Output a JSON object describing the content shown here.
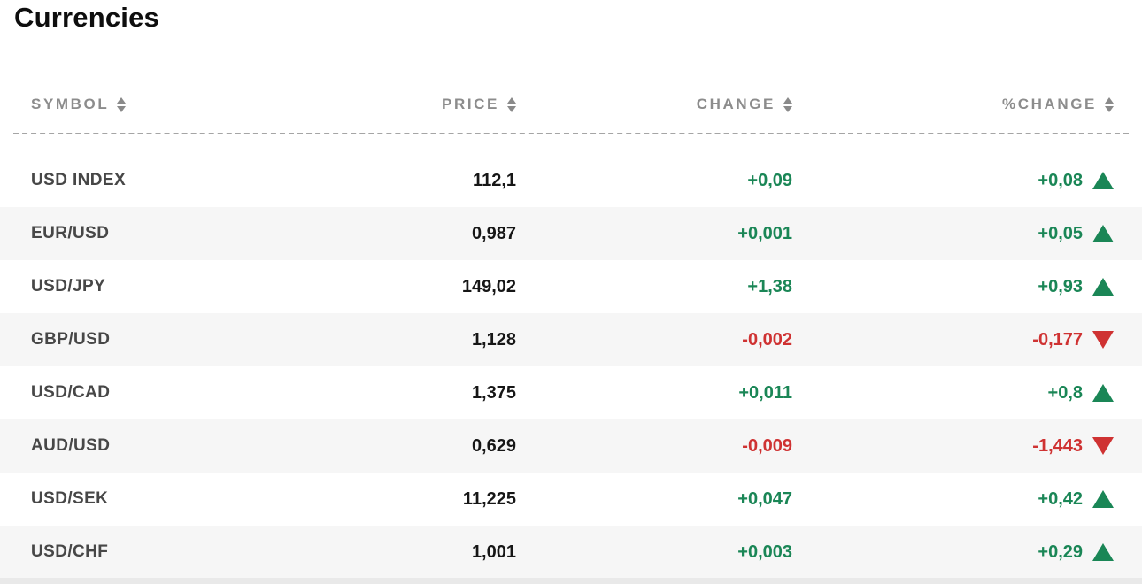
{
  "page": {
    "title": "Currencies"
  },
  "table": {
    "columns": [
      {
        "key": "symbol",
        "label": "SYMBOL"
      },
      {
        "key": "price",
        "label": "PRICE"
      },
      {
        "key": "change",
        "label": "CHANGE"
      },
      {
        "key": "pct_change",
        "label": "%CHANGE"
      }
    ],
    "rows": [
      {
        "symbol": "USD INDEX",
        "price": "112,1",
        "change": "+0,09",
        "pct_change": "+0,08",
        "direction": "up"
      },
      {
        "symbol": "EUR/USD",
        "price": "0,987",
        "change": "+0,001",
        "pct_change": "+0,05",
        "direction": "up"
      },
      {
        "symbol": "USD/JPY",
        "price": "149,02",
        "change": "+1,38",
        "pct_change": "+0,93",
        "direction": "up"
      },
      {
        "symbol": "GBP/USD",
        "price": "1,128",
        "change": "-0,002",
        "pct_change": "-0,177",
        "direction": "down"
      },
      {
        "symbol": "USD/CAD",
        "price": "1,375",
        "change": "+0,011",
        "pct_change": "+0,8",
        "direction": "up"
      },
      {
        "symbol": "AUD/USD",
        "price": "0,629",
        "change": "-0,009",
        "pct_change": "-1,443",
        "direction": "down"
      },
      {
        "symbol": "USD/SEK",
        "price": "11,225",
        "change": "+0,047",
        "pct_change": "+0,42",
        "direction": "up"
      },
      {
        "symbol": "USD/CHF",
        "price": "1,001",
        "change": "+0,003",
        "pct_change": "+0,29",
        "direction": "up"
      }
    ]
  },
  "icons": {
    "sort_icon": "stacked up/down triangles",
    "up_arrow_icon": "solid green triangle up",
    "down_arrow_icon": "solid red triangle down"
  },
  "colors": {
    "positive": "#1a8656",
    "negative": "#cf3232",
    "row_alt_background": "#f6f6f6",
    "header_text": "#8c8c8c",
    "symbol_text": "#474747",
    "price_text": "#161616",
    "title_text": "#0e0e0e",
    "divider": "#a5a5a5",
    "bottom_strip": "#e9e9e9"
  }
}
